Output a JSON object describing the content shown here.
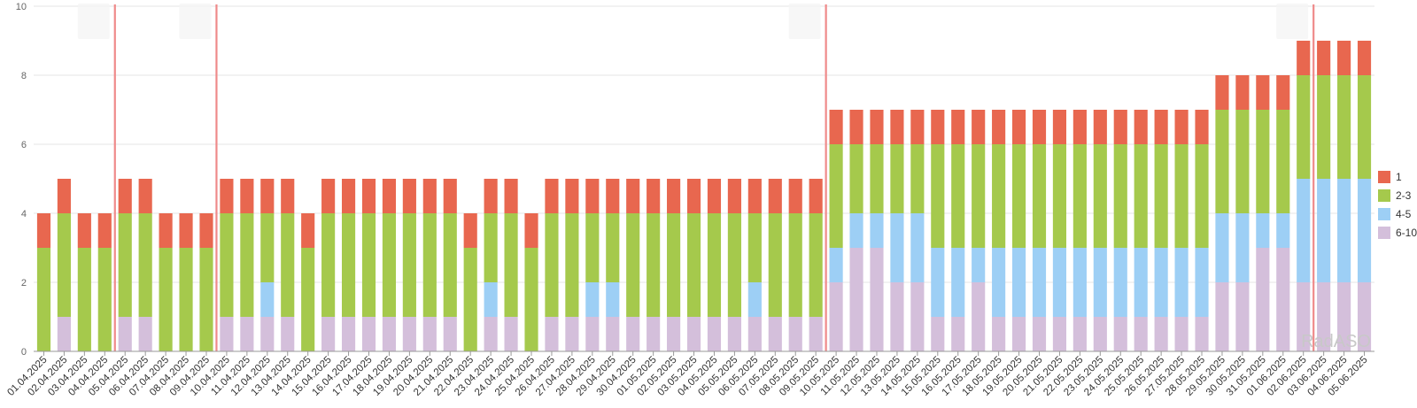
{
  "chart_data": {
    "type": "bar",
    "stacked": true,
    "title": "",
    "xlabel": "",
    "ylabel": "",
    "ylim": [
      0,
      10
    ],
    "yticks": [
      0,
      2,
      4,
      6,
      8,
      10
    ],
    "grid": true,
    "legend_position": "right",
    "categories": [
      "01.04.2025",
      "02.04.2025",
      "03.04.2025",
      "04.04.2025",
      "05.04.2025",
      "06.04.2025",
      "07.04.2025",
      "08.04.2025",
      "09.04.2025",
      "10.04.2025",
      "11.04.2025",
      "12.04.2025",
      "13.04.2025",
      "14.04.2025",
      "15.04.2025",
      "16.04.2025",
      "17.04.2025",
      "18.04.2025",
      "19.04.2025",
      "20.04.2025",
      "21.04.2025",
      "22.04.2025",
      "23.04.2025",
      "24.04.2025",
      "25.04.2025",
      "26.04.2025",
      "27.04.2025",
      "28.04.2025",
      "29.04.2025",
      "30.04.2025",
      "01.05.2025",
      "02.05.2025",
      "03.05.2025",
      "04.05.2025",
      "05.05.2025",
      "06.05.2025",
      "07.05.2025",
      "08.05.2025",
      "09.05.2025",
      "10.05.2025",
      "11.05.2025",
      "12.05.2025",
      "13.05.2025",
      "14.05.2025",
      "15.05.2025",
      "16.05.2025",
      "17.05.2025",
      "18.05.2025",
      "19.05.2025",
      "20.05.2025",
      "21.05.2025",
      "22.05.2025",
      "23.05.2025",
      "24.05.2025",
      "25.05.2025",
      "26.05.2025",
      "27.05.2025",
      "28.05.2025",
      "29.05.2025",
      "30.05.2025",
      "31.05.2025",
      "01.06.2025",
      "02.06.2025",
      "03.06.2025",
      "04.06.2025",
      "05.06.2025"
    ],
    "series": [
      {
        "name": "6-10",
        "color": "#d4bfdb",
        "values": [
          0,
          1,
          0,
          0,
          1,
          1,
          0,
          0,
          0,
          1,
          1,
          1,
          1,
          0,
          1,
          1,
          1,
          1,
          1,
          1,
          1,
          0,
          1,
          1,
          0,
          1,
          1,
          1,
          1,
          1,
          1,
          1,
          1,
          1,
          1,
          1,
          1,
          1,
          1,
          2,
          3,
          3,
          2,
          2,
          1,
          1,
          2,
          1,
          1,
          1,
          1,
          1,
          1,
          1,
          1,
          1,
          1,
          1,
          2,
          2,
          3,
          3,
          2,
          2,
          2,
          2
        ]
      },
      {
        "name": "4-5",
        "color": "#9dcff5",
        "values": [
          0,
          0,
          0,
          0,
          0,
          0,
          0,
          0,
          0,
          0,
          0,
          1,
          0,
          0,
          0,
          0,
          0,
          0,
          0,
          0,
          0,
          0,
          1,
          0,
          0,
          0,
          0,
          1,
          1,
          0,
          0,
          0,
          0,
          0,
          0,
          1,
          0,
          0,
          0,
          1,
          1,
          1,
          2,
          2,
          2,
          2,
          1,
          2,
          2,
          2,
          2,
          2,
          2,
          2,
          2,
          2,
          2,
          2,
          2,
          2,
          1,
          1,
          3,
          3,
          3,
          3
        ]
      },
      {
        "name": "2-3",
        "color": "#a5c94c",
        "values": [
          3,
          3,
          3,
          3,
          3,
          3,
          3,
          3,
          3,
          3,
          3,
          2,
          3,
          3,
          3,
          3,
          3,
          3,
          3,
          3,
          3,
          3,
          2,
          3,
          3,
          3,
          3,
          2,
          2,
          3,
          3,
          3,
          3,
          3,
          3,
          2,
          3,
          3,
          3,
          3,
          2,
          2,
          2,
          2,
          3,
          3,
          3,
          3,
          3,
          3,
          3,
          3,
          3,
          3,
          3,
          3,
          3,
          3,
          3,
          3,
          3,
          3,
          3,
          3,
          3,
          3
        ]
      },
      {
        "name": "1",
        "color": "#e8674f",
        "values": [
          1,
          1,
          1,
          1,
          1,
          1,
          1,
          1,
          1,
          1,
          1,
          1,
          1,
          1,
          1,
          1,
          1,
          1,
          1,
          1,
          1,
          1,
          1,
          1,
          1,
          1,
          1,
          1,
          1,
          1,
          1,
          1,
          1,
          1,
          1,
          1,
          1,
          1,
          1,
          1,
          1,
          1,
          1,
          1,
          1,
          1,
          1,
          1,
          1,
          1,
          1,
          1,
          1,
          1,
          1,
          1,
          1,
          1,
          1,
          1,
          1,
          1,
          1,
          1,
          1,
          1
        ]
      }
    ],
    "legend_order": [
      "1",
      "2-3",
      "4-5",
      "6-10"
    ],
    "markers": {
      "color": "#ef8a8a",
      "positions": [
        3.5,
        8.5,
        38.5,
        62.5
      ]
    },
    "watermark": "RadASO"
  }
}
